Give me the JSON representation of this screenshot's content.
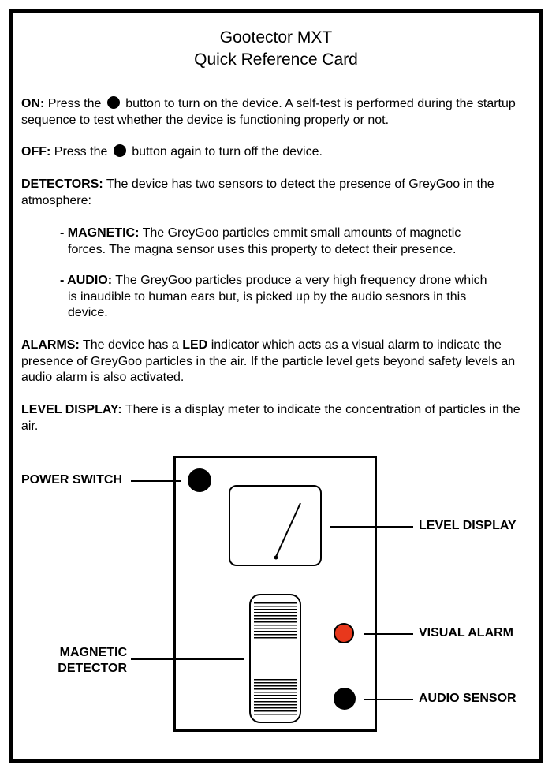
{
  "title": {
    "line1": "Gootector MXT",
    "line2": "Quick Reference Card"
  },
  "sections": {
    "on": {
      "label": "ON:",
      "text_before": "Press the",
      "text_after": "button to turn on the device. A self-test is performed during the startup sequence to test whether the device is functioning properly or not."
    },
    "off": {
      "label": "OFF:",
      "text_before": "Press the",
      "text_after": "button again to turn off the device."
    },
    "detectors": {
      "label": "DETECTORS:",
      "text": "The device has two sensors to detect the presence of GreyGoo in the atmosphere:"
    },
    "magnetic": {
      "label": "- MAGNETIC:",
      "line1": "The GreyGoo particles emmit small amounts of magnetic",
      "line2": "forces. The magna sensor uses this property to detect their presence."
    },
    "audio": {
      "label": "- AUDIO:",
      "line1": "The GreyGoo particles produce a very high frequency drone which",
      "line2": "is inaudible to human ears but, is picked up by the audio sesnors in this",
      "line3": "device."
    },
    "alarms": {
      "label": "ALARMS:",
      "text_before": "The device has a",
      "led": "LED",
      "text_after": "indicator which acts as a visual alarm to indicate the presence of GreyGoo particles in the air. If the particle level gets beyond safety levels an audio alarm is also activated."
    },
    "level_display": {
      "label": "LEVEL DISPLAY:",
      "text": "There is a display meter to indicate the concentration of particles in the air."
    }
  },
  "diagram": {
    "power_switch": "POWER SWITCH",
    "level_display": "LEVEL DISPLAY",
    "visual_alarm": "VISUAL ALARM",
    "magnetic_detector_line1": "MAGNETIC",
    "magnetic_detector_line2": "DETECTOR",
    "audio_sensor": "AUDIO SENSOR",
    "alarm_color": "#e8381c",
    "button_icon": "filled-circle-icon"
  }
}
